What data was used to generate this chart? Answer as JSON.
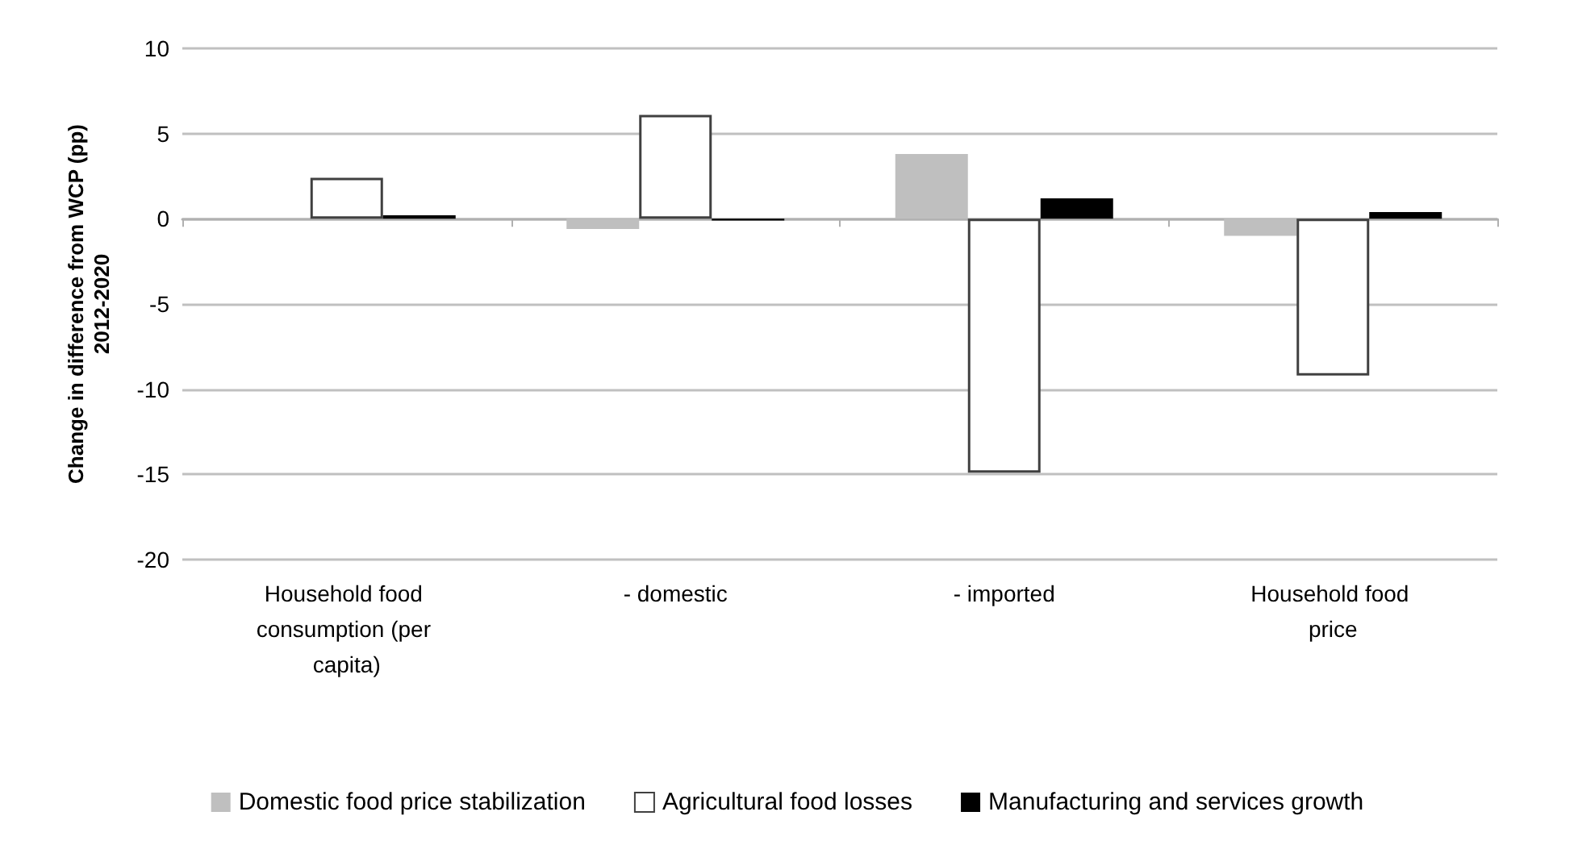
{
  "chart_data": {
    "type": "bar",
    "categories": [
      "Household food consumption (per capita)",
      "- domestic",
      "- imported",
      "Household food price"
    ],
    "ylabel": "Change in difference from WCP (pp)\n2012-2020",
    "series": [
      {
        "name": "Domestic food price stabilization",
        "color": "#bfbfbf",
        "values": [
          null,
          -0.6,
          3.8,
          -1.0
        ]
      },
      {
        "name": "Agricultural food losses",
        "color": "#ffffff",
        "values": [
          2.4,
          6.1,
          -14.9,
          -9.2
        ]
      },
      {
        "name": "Manufacturing and services growth",
        "color": "#000000",
        "values": [
          0.2,
          -0.1,
          1.2,
          0.4
        ]
      }
    ],
    "ylim": [
      -20,
      10
    ],
    "yticks": [
      -20,
      -15,
      -10,
      -5,
      0,
      5,
      10
    ],
    "grid": "y",
    "legend": "bottom"
  }
}
